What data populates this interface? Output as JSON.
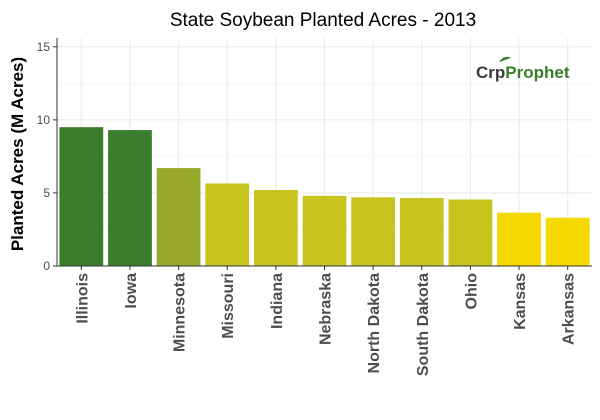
{
  "chart_data": {
    "type": "bar",
    "title": "State Soybean Planted Acres - 2013",
    "xlabel": "",
    "ylabel": "Planted Acres (M Acres)",
    "ylim": [
      0,
      15.6
    ],
    "yticks": [
      0,
      5,
      10,
      15
    ],
    "grid": true,
    "legend": "none",
    "categories": [
      "Illinois",
      "Iowa",
      "Minnesota",
      "Missouri",
      "Indiana",
      "Nebraska",
      "North Dakota",
      "South Dakota",
      "Ohio",
      "Kansas",
      "Arkansas"
    ],
    "values": [
      9.5,
      9.3,
      6.7,
      5.65,
      5.2,
      4.8,
      4.7,
      4.65,
      4.55,
      3.65,
      3.3
    ],
    "bar_colors": [
      "#3a7d2c",
      "#3a7d2c",
      "#98a82a",
      "#c8c41e",
      "#c8c41e",
      "#c8c41e",
      "#c8c41e",
      "#c8c41e",
      "#c8c41e",
      "#f5d800",
      "#f5d800"
    ]
  },
  "logo": {
    "part1": "Cr",
    "part2": "p",
    "part3": "Prophet",
    "color_dark": "#3c3c3c",
    "color_green": "#3a7d2c"
  }
}
